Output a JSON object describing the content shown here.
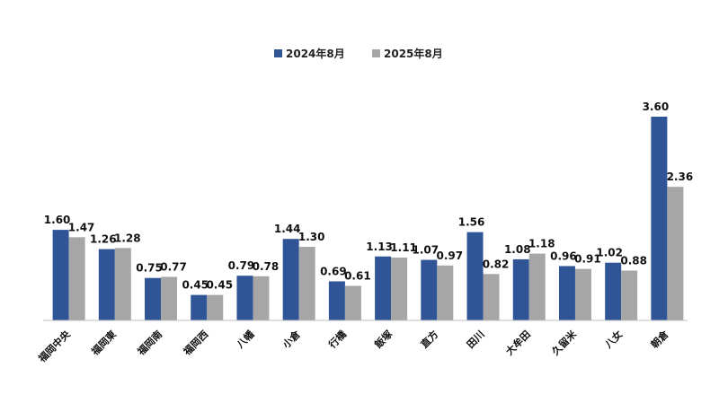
{
  "chart_data": {
    "type": "bar",
    "categories": [
      "福岡中央",
      "福岡東",
      "福岡南",
      "福岡西",
      "八幡",
      "小倉",
      "行橋",
      "飯塚",
      "直方",
      "田川",
      "大牟田",
      "久留米",
      "八女",
      "朝倉"
    ],
    "series": [
      {
        "name": "2024年8月",
        "color": "#2f5597",
        "values": [
          1.6,
          1.26,
          0.75,
          0.45,
          0.79,
          1.44,
          0.69,
          1.13,
          1.07,
          1.56,
          1.08,
          0.96,
          1.02,
          3.6
        ]
      },
      {
        "name": "2025年8月",
        "color": "#a6a6a6",
        "values": [
          1.47,
          1.28,
          0.77,
          0.45,
          0.78,
          1.3,
          0.61,
          1.11,
          0.97,
          0.82,
          1.18,
          0.91,
          0.88,
          2.36
        ]
      }
    ],
    "value_labels": [
      [
        "1.60",
        "1.26",
        "0.75",
        "0.45",
        "0.79",
        "1.44",
        "0.69",
        "1.13",
        "1.07",
        "1.56",
        "1.08",
        "0.96",
        "1.02",
        "3.60"
      ],
      [
        "1.47",
        "1.28",
        "0.77",
        "0.45",
        "0.78",
        "1.30",
        "0.61",
        "1.11",
        "0.97",
        "0.82",
        "1.18",
        "0.91",
        "0.88",
        "2.36"
      ]
    ],
    "title": "",
    "xlabel": "",
    "ylabel": "",
    "ylim": [
      0,
      3.6
    ],
    "grid": false,
    "legend_position": "top-center",
    "axis_color": "#bfbfbf"
  }
}
